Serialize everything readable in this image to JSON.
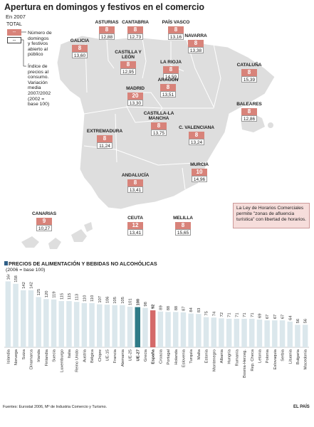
{
  "title": "Apertura en domingos y festivos en el comercio",
  "subtitle": "En 2007",
  "legend": {
    "total_label": "TOTAL",
    "box1_symbol": "--",
    "box2_symbol": "--",
    "item1": [
      "Número de",
      "domingos",
      "y festivos",
      "abierto al",
      "público"
    ],
    "item2": [
      "Índice de",
      "precios al",
      "consumo.",
      "Variación",
      "media",
      "2007/2002",
      "(2002 =",
      "base 100)"
    ]
  },
  "regions": [
    {
      "name": "ASTURIAS",
      "days": "8",
      "index": "12,88"
    },
    {
      "name": "CANTABRIA",
      "days": "8",
      "index": "12,73"
    },
    {
      "name": "PAÍS VASCO",
      "days": "8",
      "index": "13,16"
    },
    {
      "name": "NAVARRA",
      "days": "8",
      "index": "13,38"
    },
    {
      "name": "GALICIA",
      "days": "8",
      "index": "13,60"
    },
    {
      "name": "CASTILLA Y LEÓN",
      "days": "8",
      "index": "12,95"
    },
    {
      "name": "LA RIOJA",
      "days": "8",
      "index": "14,59"
    },
    {
      "name": "CATALUÑA",
      "days": "8",
      "index": "15,39"
    },
    {
      "name": "ARAGÓN",
      "days": "8",
      "index": "13,51"
    },
    {
      "name": "MADRID",
      "days": "20",
      "index": "13,30"
    },
    {
      "name": "BALEARES",
      "days": "8",
      "index": "12,86"
    },
    {
      "name": "CASTILLA-LA MANCHA",
      "days": "8",
      "index": "13,75"
    },
    {
      "name": "EXTREMADURA",
      "days": "8",
      "index": "11,24"
    },
    {
      "name": "C. VALENCIANA",
      "days": "8",
      "index": "13,24"
    },
    {
      "name": "ANDALUCÍA",
      "days": "8",
      "index": "13,41"
    },
    {
      "name": "MURCIA",
      "days": "10",
      "index": "14,96"
    },
    {
      "name": "CANARIAS",
      "days": "9",
      "index": "10,27"
    },
    {
      "name": "CEUTA",
      "days": "12",
      "index": "13,41"
    },
    {
      "name": "MELILLA",
      "days": "8",
      "index": "15,65"
    }
  ],
  "note": "La Ley de Horarios Comerciales permite \"zonas de afluencia turística\" con libertad de horarios.",
  "prices_title": "PRECIOS DE ALIMENTACIÓN Y BEBIDAS NO ALCOHÓLICAS",
  "prices_subtitle": "(2006 = base 100)",
  "colors": {
    "bar": "#dbe7ec",
    "highlight_eu": "#2f7b87",
    "highlight_es": "#d46a6a",
    "map": "#dedede",
    "badge": "#d8837a"
  },
  "chart_data": {
    "type": "bar",
    "title": "PRECIOS DE ALIMENTACIÓN Y BEBIDAS NO ALCOHÓLICAS",
    "subtitle": "(2006 = base 100)",
    "categories": [
      "Islandia",
      "Noruega",
      "Suiza",
      "Dinamarca",
      "Irlanda",
      "Finlandia",
      "Suecia",
      "Luxemburgo",
      "Italia",
      "Reino Unido",
      "Austria",
      "Bélgica",
      "Chipre",
      "UE-15",
      "Francia",
      "Alemania",
      "UE-25",
      "UE-27",
      "Grecia",
      "España",
      "Croacia",
      "Portugal",
      "Holanda",
      "Eslovenia",
      "Turquía",
      "Malta",
      "Estonia",
      "Montenegro",
      "Albania",
      "Hungría",
      "Rumanía",
      "Bosnia-Herzeg.",
      "Rep. Checa",
      "Letonia",
      "Polonia",
      "Eslovaquia",
      "Serbia",
      "Lituania",
      "Bulgaria",
      "Macedonia"
    ],
    "values": [
      164,
      158,
      142,
      142,
      125,
      120,
      119,
      115,
      115,
      113,
      110,
      110,
      107,
      106,
      105,
      105,
      101,
      100,
      98,
      92,
      89,
      88,
      88,
      87,
      84,
      83,
      75,
      74,
      72,
      71,
      71,
      71,
      71,
      69,
      67,
      67,
      67,
      64,
      56,
      56
    ],
    "highlight": {
      "UE-27": "#2f7b87",
      "España": "#d46a6a"
    },
    "ylim": [
      0,
      170
    ]
  },
  "source": "Fuentes: Eurostat 2006, Mº de Industria Comercio y Turismo.",
  "brand": "EL PAÍS"
}
